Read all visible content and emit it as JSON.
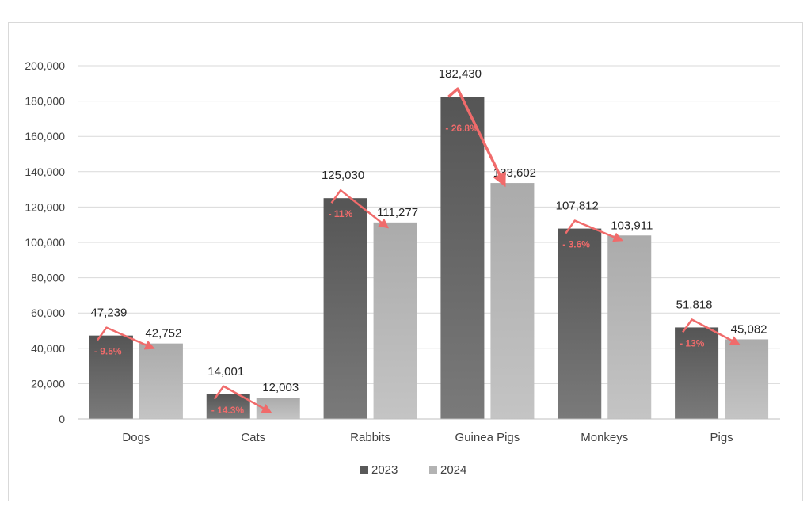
{
  "chart_data": {
    "type": "bar",
    "categories": [
      "Dogs",
      "Cats",
      "Rabbits",
      "Guinea Pigs",
      "Monkeys",
      "Pigs"
    ],
    "series": [
      {
        "name": "2023",
        "values": [
          47239,
          14001,
          125030,
          182430,
          107812,
          51818
        ],
        "labels": [
          "47,239",
          "14,001",
          "125,030",
          "182,430",
          "107,812",
          "51,818"
        ]
      },
      {
        "name": "2024",
        "values": [
          42752,
          12003,
          111277,
          133602,
          103911,
          45082
        ],
        "labels": [
          "42,752",
          "12,003",
          "111,277",
          "133,602",
          "103,911",
          "45,082"
        ]
      }
    ],
    "changes": [
      "- 9.5%",
      "- 14.3%",
      "- 11%",
      "- 26.8%",
      "- 3.6%",
      "- 13%"
    ],
    "ylim": [
      0,
      200000
    ],
    "yticks": [
      0,
      20000,
      40000,
      60000,
      80000,
      100000,
      120000,
      140000,
      160000,
      180000,
      200000
    ],
    "ytick_labels": [
      "0",
      "20,000",
      "40,000",
      "60,000",
      "80,000",
      "100,000",
      "120,000",
      "140,000",
      "160,000",
      "180,000",
      "200,000"
    ],
    "grid": true,
    "legend_position": "bottom",
    "title": "",
    "xlabel": "",
    "ylabel": "",
    "colors": {
      "2023": "#595959",
      "2024": "#b3b3b3",
      "arrow": "#f06b6b",
      "grid": "#d9d9d9"
    }
  }
}
